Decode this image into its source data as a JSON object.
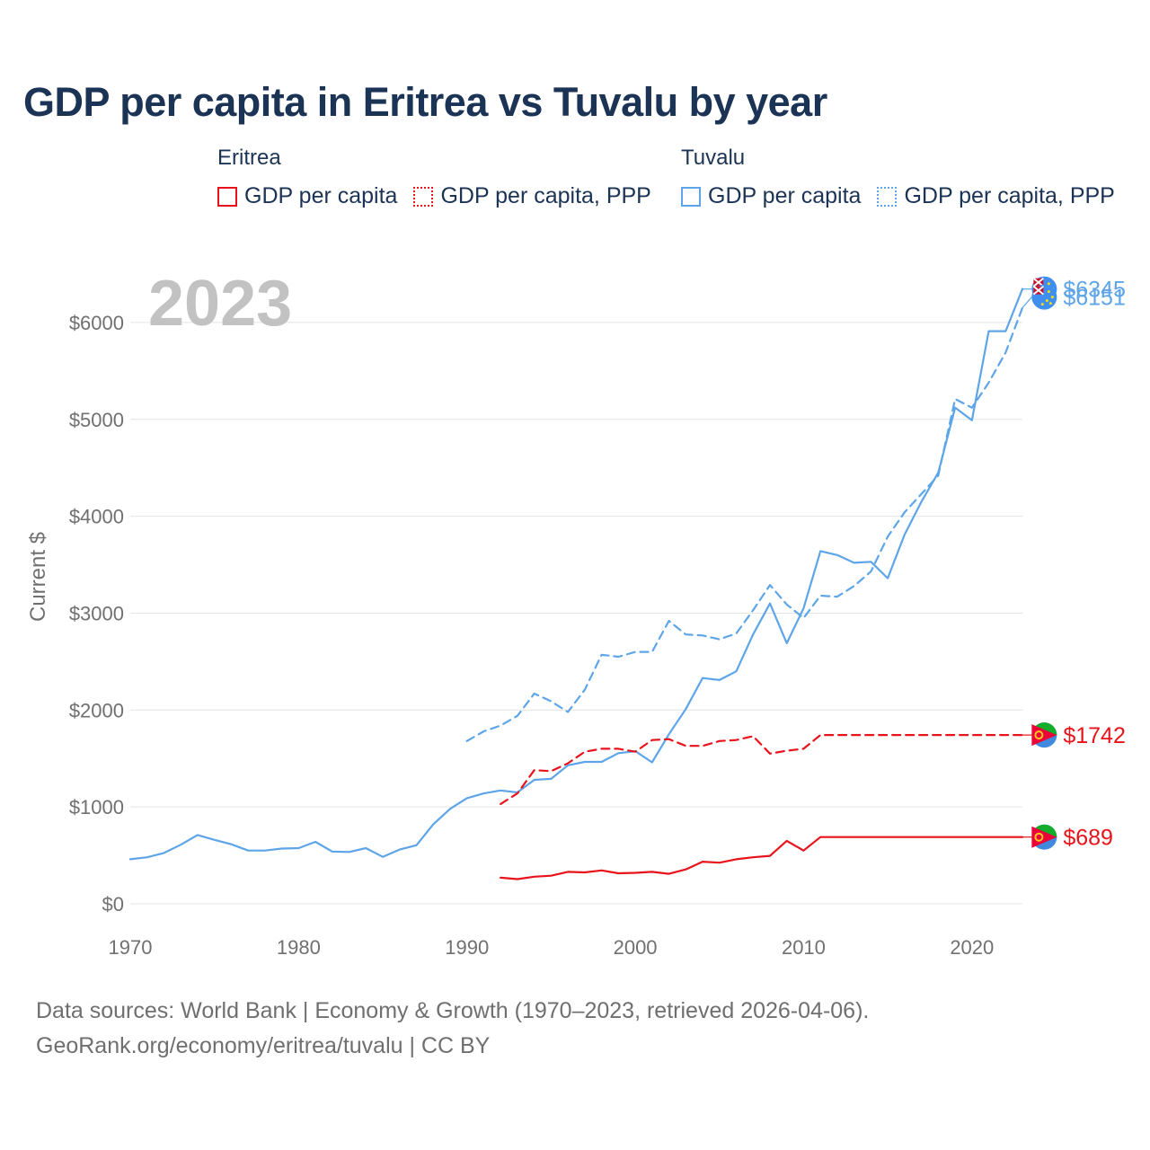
{
  "title": "GDP per capita in Eritrea vs Tuvalu by year",
  "legend": {
    "groups": [
      {
        "name": "Eritrea",
        "color": "#e8131a",
        "items": [
          {
            "label": "GDP per capita",
            "style": "solid"
          },
          {
            "label": "GDP per capita, PPP",
            "style": "dotted"
          }
        ]
      },
      {
        "name": "Tuvalu",
        "color": "#5da5e8",
        "items": [
          {
            "label": "GDP per capita",
            "style": "solid"
          },
          {
            "label": "GDP per capita, PPP",
            "style": "dotted"
          }
        ]
      }
    ]
  },
  "year_label": "2023",
  "footer": {
    "line1": "Data sources: World Bank | Economy & Growth (1970–2023, retrieved 2026-04-06).",
    "line2": "GeoRank.org/economy/eritrea/tuvalu | CC BY"
  },
  "chart_data": {
    "type": "line",
    "title": "GDP per capita in Eritrea vs Tuvalu by year",
    "xlabel": "",
    "ylabel": "Current $",
    "xlim": [
      1970,
      2023
    ],
    "ylim": [
      0,
      6500
    ],
    "x_ticks": [
      1970,
      1980,
      1990,
      2000,
      2010,
      2020
    ],
    "y_ticks": [
      {
        "value": 0,
        "label": "$0"
      },
      {
        "value": 1000,
        "label": "$1000"
      },
      {
        "value": 2000,
        "label": "$2000"
      },
      {
        "value": 3000,
        "label": "$3000"
      },
      {
        "value": 4000,
        "label": "$4000"
      },
      {
        "value": 5000,
        "label": "$5000"
      },
      {
        "value": 6000,
        "label": "$6000"
      }
    ],
    "grid": true,
    "end_marker_year": 2024.3,
    "series": [
      {
        "name": "Tuvalu GDP per capita",
        "country": "Tuvalu",
        "color": "#5da5e8",
        "dash": "solid",
        "end_label": "$6345",
        "x": [
          1970,
          1971,
          1972,
          1973,
          1974,
          1975,
          1976,
          1977,
          1978,
          1979,
          1980,
          1981,
          1982,
          1983,
          1984,
          1985,
          1986,
          1987,
          1988,
          1989,
          1990,
          1991,
          1992,
          1993,
          1994,
          1995,
          1996,
          1997,
          1998,
          1999,
          2000,
          2001,
          2002,
          2003,
          2004,
          2005,
          2006,
          2007,
          2008,
          2009,
          2010,
          2011,
          2012,
          2013,
          2014,
          2015,
          2016,
          2017,
          2018,
          2019,
          2020,
          2021,
          2022,
          2023
        ],
        "values": [
          460,
          480,
          525,
          610,
          710,
          660,
          615,
          550,
          550,
          570,
          575,
          640,
          540,
          535,
          575,
          485,
          560,
          605,
          820,
          980,
          1090,
          1140,
          1170,
          1150,
          1280,
          1290,
          1430,
          1465,
          1465,
          1555,
          1575,
          1460,
          1750,
          2010,
          2330,
          2310,
          2400,
          2780,
          3100,
          2690,
          3050,
          3640,
          3600,
          3520,
          3530,
          3360,
          3810,
          4150,
          4450,
          5120,
          4990,
          5910,
          5910,
          6345
        ]
      },
      {
        "name": "Tuvalu GDP per capita, PPP",
        "country": "Tuvalu",
        "color": "#5da5e8",
        "dash": "dashed",
        "end_label": "$6151",
        "x": [
          1990,
          1991,
          1992,
          1993,
          1994,
          1995,
          1996,
          1997,
          1998,
          1999,
          2000,
          2001,
          2002,
          2003,
          2004,
          2005,
          2006,
          2007,
          2008,
          2009,
          2010,
          2011,
          2012,
          2013,
          2014,
          2015,
          2016,
          2017,
          2018,
          2019,
          2020,
          2021,
          2022,
          2023
        ],
        "values": [
          1680,
          1780,
          1840,
          1940,
          2170,
          2090,
          1980,
          2210,
          2570,
          2550,
          2600,
          2600,
          2920,
          2780,
          2770,
          2730,
          2790,
          3030,
          3290,
          3090,
          2950,
          3180,
          3170,
          3280,
          3430,
          3790,
          4040,
          4230,
          4420,
          5210,
          5120,
          5380,
          5690,
          6151
        ]
      },
      {
        "name": "Eritrea GDP per capita, PPP",
        "country": "Eritrea",
        "color": "#e8131a",
        "dash": "dashed",
        "end_label": "$1742",
        "x": [
          1992,
          1993,
          1994,
          1995,
          1996,
          1997,
          1998,
          1999,
          2000,
          2001,
          2002,
          2003,
          2004,
          2005,
          2006,
          2007,
          2008,
          2009,
          2010,
          2011,
          2023
        ],
        "values": [
          1030,
          1140,
          1380,
          1370,
          1450,
          1570,
          1600,
          1600,
          1570,
          1690,
          1700,
          1630,
          1630,
          1680,
          1690,
          1730,
          1550,
          1580,
          1600,
          1742,
          1742
        ]
      },
      {
        "name": "Eritrea GDP per capita",
        "country": "Eritrea",
        "color": "#e8131a",
        "dash": "solid",
        "end_label": "$689",
        "x": [
          1992,
          1993,
          1994,
          1995,
          1996,
          1997,
          1998,
          1999,
          2000,
          2001,
          2002,
          2003,
          2004,
          2005,
          2006,
          2007,
          2008,
          2009,
          2010,
          2011,
          2023
        ],
        "values": [
          270,
          255,
          280,
          290,
          330,
          325,
          345,
          315,
          320,
          330,
          310,
          355,
          435,
          425,
          460,
          480,
          495,
          650,
          550,
          689,
          689
        ]
      }
    ]
  }
}
